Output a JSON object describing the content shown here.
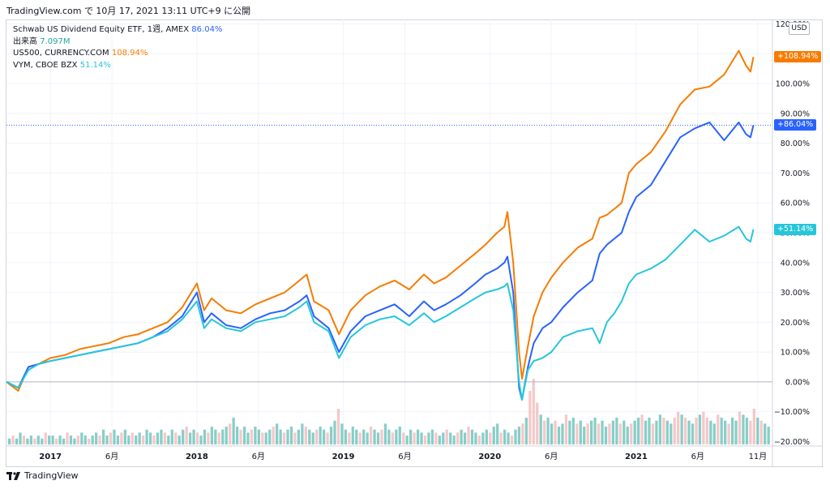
{
  "header": {
    "text": "TradingView.com で 10月 17, 2021 13:11 UTC+9 に公開"
  },
  "footer": {
    "brand": "TradingView"
  },
  "currency": "USD",
  "legend": [
    {
      "name": "Schwab US Dividend Equity ETF, 1週, AMEX",
      "value": "86.04%",
      "color": "#2962ff"
    },
    {
      "name": "出来高",
      "value": "7.097M",
      "color": "#26a69a"
    },
    {
      "name": "US500, CURRENCY.COM",
      "value": "108.94%",
      "color": "#f57c00"
    },
    {
      "name": "VYM, CBOE BZX",
      "value": "51.14%",
      "color": "#26c6da"
    }
  ],
  "price_tags": [
    {
      "label": "+108.94%",
      "value": 108.94,
      "color": "#f57c00"
    },
    {
      "label": "+86.04%",
      "value": 86.04,
      "color": "#2962ff"
    },
    {
      "label": "+51.14%",
      "value": 51.14,
      "color": "#26c6da"
    }
  ],
  "chart_data": {
    "type": "line",
    "x_axis_labels": [
      {
        "label": "2017",
        "x": 2017.0
      },
      {
        "label": "6月",
        "x": 2017.42
      },
      {
        "label": "2018",
        "x": 2018.0
      },
      {
        "label": "6月",
        "x": 2018.42
      },
      {
        "label": "2019",
        "x": 2019.0
      },
      {
        "label": "6月",
        "x": 2019.42
      },
      {
        "label": "2020",
        "x": 2020.0
      },
      {
        "label": "6月",
        "x": 2020.42
      },
      {
        "label": "2021",
        "x": 2021.0
      },
      {
        "label": "6月",
        "x": 2021.42
      },
      {
        "label": "11月",
        "x": 2021.83
      }
    ],
    "x_range": [
      2016.7,
      2021.93
    ],
    "y_axis_ticks": [
      "120.00%",
      "110.00%",
      "100.00%",
      "90.00%",
      "80.00%",
      "70.00%",
      "60.00%",
      "50.00%",
      "40.00%",
      "30.00%",
      "20.00%",
      "10.00%",
      "0.00%",
      "−10.00%",
      "−20.00%"
    ],
    "y_range": [
      -21.5,
      121.5
    ],
    "grid": true,
    "series": [
      {
        "name": "US500, CURRENCY.COM",
        "color": "#f57c00",
        "points": [
          [
            2016.7,
            0
          ],
          [
            2016.78,
            -3
          ],
          [
            2016.85,
            5
          ],
          [
            2016.92,
            6
          ],
          [
            2017.0,
            8
          ],
          [
            2017.1,
            9
          ],
          [
            2017.2,
            11
          ],
          [
            2017.3,
            12
          ],
          [
            2017.4,
            13
          ],
          [
            2017.5,
            15
          ],
          [
            2017.6,
            16
          ],
          [
            2017.7,
            18
          ],
          [
            2017.8,
            20
          ],
          [
            2017.9,
            25
          ],
          [
            2018.0,
            33
          ],
          [
            2018.05,
            24
          ],
          [
            2018.1,
            28
          ],
          [
            2018.2,
            24
          ],
          [
            2018.3,
            23
          ],
          [
            2018.4,
            26
          ],
          [
            2018.5,
            28
          ],
          [
            2018.6,
            30
          ],
          [
            2018.7,
            34
          ],
          [
            2018.75,
            36
          ],
          [
            2018.8,
            27
          ],
          [
            2018.9,
            24
          ],
          [
            2018.97,
            16
          ],
          [
            2019.05,
            24
          ],
          [
            2019.15,
            29
          ],
          [
            2019.25,
            32
          ],
          [
            2019.35,
            34
          ],
          [
            2019.45,
            31
          ],
          [
            2019.55,
            36
          ],
          [
            2019.62,
            33
          ],
          [
            2019.7,
            35
          ],
          [
            2019.8,
            39
          ],
          [
            2019.9,
            43
          ],
          [
            2019.97,
            46
          ],
          [
            2020.05,
            50
          ],
          [
            2020.1,
            52
          ],
          [
            2020.12,
            57
          ],
          [
            2020.16,
            40
          ],
          [
            2020.2,
            10
          ],
          [
            2020.22,
            1
          ],
          [
            2020.26,
            12
          ],
          [
            2020.3,
            22
          ],
          [
            2020.36,
            30
          ],
          [
            2020.42,
            35
          ],
          [
            2020.5,
            40
          ],
          [
            2020.6,
            45
          ],
          [
            2020.7,
            48
          ],
          [
            2020.75,
            55
          ],
          [
            2020.8,
            56
          ],
          [
            2020.85,
            58
          ],
          [
            2020.9,
            60
          ],
          [
            2020.95,
            70
          ],
          [
            2021.0,
            73
          ],
          [
            2021.1,
            77
          ],
          [
            2021.2,
            84
          ],
          [
            2021.3,
            93
          ],
          [
            2021.4,
            98
          ],
          [
            2021.5,
            99
          ],
          [
            2021.6,
            103
          ],
          [
            2021.7,
            111
          ],
          [
            2021.75,
            106
          ],
          [
            2021.78,
            104
          ],
          [
            2021.8,
            108.94
          ]
        ]
      },
      {
        "name": "Schwab US Dividend Equity ETF, 1週, AMEX",
        "color": "#2962ff",
        "points": [
          [
            2016.7,
            0
          ],
          [
            2016.78,
            -2
          ],
          [
            2016.85,
            5
          ],
          [
            2016.92,
            6
          ],
          [
            2017.0,
            7
          ],
          [
            2017.1,
            8
          ],
          [
            2017.2,
            9
          ],
          [
            2017.3,
            10
          ],
          [
            2017.4,
            11
          ],
          [
            2017.5,
            12
          ],
          [
            2017.6,
            13
          ],
          [
            2017.7,
            15
          ],
          [
            2017.8,
            18
          ],
          [
            2017.9,
            22
          ],
          [
            2018.0,
            30
          ],
          [
            2018.05,
            20
          ],
          [
            2018.1,
            23
          ],
          [
            2018.2,
            19
          ],
          [
            2018.3,
            18
          ],
          [
            2018.4,
            21
          ],
          [
            2018.5,
            23
          ],
          [
            2018.6,
            24
          ],
          [
            2018.7,
            27
          ],
          [
            2018.75,
            29
          ],
          [
            2018.8,
            22
          ],
          [
            2018.9,
            18
          ],
          [
            2018.97,
            10
          ],
          [
            2019.05,
            17
          ],
          [
            2019.15,
            22
          ],
          [
            2019.25,
            24
          ],
          [
            2019.35,
            26
          ],
          [
            2019.45,
            22
          ],
          [
            2019.55,
            27
          ],
          [
            2019.62,
            24
          ],
          [
            2019.7,
            26
          ],
          [
            2019.8,
            29
          ],
          [
            2019.9,
            33
          ],
          [
            2019.97,
            36
          ],
          [
            2020.05,
            38
          ],
          [
            2020.1,
            40
          ],
          [
            2020.12,
            42
          ],
          [
            2020.16,
            30
          ],
          [
            2020.2,
            -2
          ],
          [
            2020.22,
            -6
          ],
          [
            2020.26,
            5
          ],
          [
            2020.3,
            13
          ],
          [
            2020.36,
            18
          ],
          [
            2020.42,
            20
          ],
          [
            2020.5,
            25
          ],
          [
            2020.6,
            30
          ],
          [
            2020.7,
            34
          ],
          [
            2020.75,
            43
          ],
          [
            2020.8,
            46
          ],
          [
            2020.85,
            48
          ],
          [
            2020.9,
            50
          ],
          [
            2020.95,
            57
          ],
          [
            2021.0,
            62
          ],
          [
            2021.1,
            66
          ],
          [
            2021.2,
            74
          ],
          [
            2021.3,
            82
          ],
          [
            2021.4,
            85
          ],
          [
            2021.5,
            87
          ],
          [
            2021.6,
            81
          ],
          [
            2021.7,
            87
          ],
          [
            2021.75,
            83
          ],
          [
            2021.78,
            82
          ],
          [
            2021.8,
            86.04
          ]
        ]
      },
      {
        "name": "VYM, CBOE BZX",
        "color": "#26c6da",
        "points": [
          [
            2016.7,
            0
          ],
          [
            2016.78,
            -2
          ],
          [
            2016.85,
            4
          ],
          [
            2016.92,
            6
          ],
          [
            2017.0,
            7
          ],
          [
            2017.1,
            8
          ],
          [
            2017.2,
            9
          ],
          [
            2017.3,
            10
          ],
          [
            2017.4,
            11
          ],
          [
            2017.5,
            12
          ],
          [
            2017.6,
            13
          ],
          [
            2017.7,
            15
          ],
          [
            2017.8,
            17
          ],
          [
            2017.9,
            21
          ],
          [
            2018.0,
            27
          ],
          [
            2018.05,
            18
          ],
          [
            2018.1,
            21
          ],
          [
            2018.2,
            18
          ],
          [
            2018.3,
            17
          ],
          [
            2018.4,
            20
          ],
          [
            2018.5,
            21
          ],
          [
            2018.6,
            22
          ],
          [
            2018.7,
            25
          ],
          [
            2018.75,
            27
          ],
          [
            2018.8,
            20
          ],
          [
            2018.9,
            17
          ],
          [
            2018.97,
            8
          ],
          [
            2019.05,
            15
          ],
          [
            2019.15,
            19
          ],
          [
            2019.25,
            21
          ],
          [
            2019.35,
            22
          ],
          [
            2019.45,
            19
          ],
          [
            2019.55,
            23
          ],
          [
            2019.62,
            20
          ],
          [
            2019.7,
            22
          ],
          [
            2019.8,
            25
          ],
          [
            2019.9,
            28
          ],
          [
            2019.97,
            30
          ],
          [
            2020.05,
            31
          ],
          [
            2020.1,
            32
          ],
          [
            2020.12,
            33
          ],
          [
            2020.16,
            24
          ],
          [
            2020.2,
            0
          ],
          [
            2020.22,
            -6
          ],
          [
            2020.26,
            4
          ],
          [
            2020.3,
            7
          ],
          [
            2020.36,
            8
          ],
          [
            2020.42,
            10
          ],
          [
            2020.5,
            15
          ],
          [
            2020.6,
            17
          ],
          [
            2020.7,
            18
          ],
          [
            2020.75,
            13
          ],
          [
            2020.8,
            20
          ],
          [
            2020.85,
            23
          ],
          [
            2020.9,
            27
          ],
          [
            2020.95,
            33
          ],
          [
            2021.0,
            36
          ],
          [
            2021.1,
            38
          ],
          [
            2021.2,
            41
          ],
          [
            2021.3,
            46
          ],
          [
            2021.4,
            51
          ],
          [
            2021.5,
            47
          ],
          [
            2021.6,
            49
          ],
          [
            2021.7,
            52
          ],
          [
            2021.75,
            48
          ],
          [
            2021.78,
            47
          ],
          [
            2021.8,
            51.14
          ]
        ]
      }
    ],
    "volume": {
      "name": "出来高",
      "seed_note_free_values": [
        2,
        3,
        2,
        4,
        3,
        2,
        3,
        2,
        3,
        2,
        4,
        3,
        3,
        2,
        3,
        2,
        4,
        3,
        2,
        3,
        4,
        3,
        2,
        3,
        4,
        3,
        5,
        3,
        4,
        5,
        3,
        4,
        5,
        3,
        4,
        3,
        4,
        3,
        5,
        4,
        3,
        4,
        5,
        4,
        3,
        5,
        4,
        3,
        5,
        6,
        4,
        5,
        4,
        3,
        5,
        4,
        6,
        5,
        4,
        5,
        6,
        7,
        9,
        6,
        5,
        6,
        4,
        5,
        6,
        5,
        4,
        4,
        5,
        6,
        7,
        5,
        4,
        5,
        6,
        4,
        5,
        7,
        6,
        5,
        4,
        5,
        6,
        5,
        4,
        6,
        8,
        12,
        7,
        5,
        4,
        6,
        5,
        4,
        5,
        4,
        6,
        5,
        4,
        5,
        7,
        5,
        4,
        5,
        6,
        4,
        3,
        5,
        4,
        5,
        4,
        3,
        4,
        5,
        4,
        3,
        4,
        5,
        4,
        3,
        4,
        5,
        4,
        6,
        5,
        4,
        3,
        4,
        5,
        4,
        6,
        7,
        4,
        5,
        4,
        3,
        5,
        6,
        7,
        9,
        18,
        22,
        14,
        10,
        8,
        9,
        7,
        8,
        6,
        7,
        10,
        8,
        9,
        7,
        8,
        6,
        7,
        8,
        9,
        7,
        8,
        6,
        7,
        8,
        9,
        7,
        8,
        6,
        7,
        8,
        9,
        10,
        8,
        9,
        7,
        8,
        10,
        9,
        8,
        7,
        9,
        11,
        10,
        9,
        8,
        7,
        9,
        10,
        11,
        9,
        8,
        7,
        10,
        9,
        8,
        7,
        9,
        8,
        11,
        10,
        9,
        8,
        12,
        9,
        8,
        7,
        6
      ],
      "colors": [
        "#26a69a",
        "#ef9a9a"
      ],
      "max": 22
    }
  }
}
